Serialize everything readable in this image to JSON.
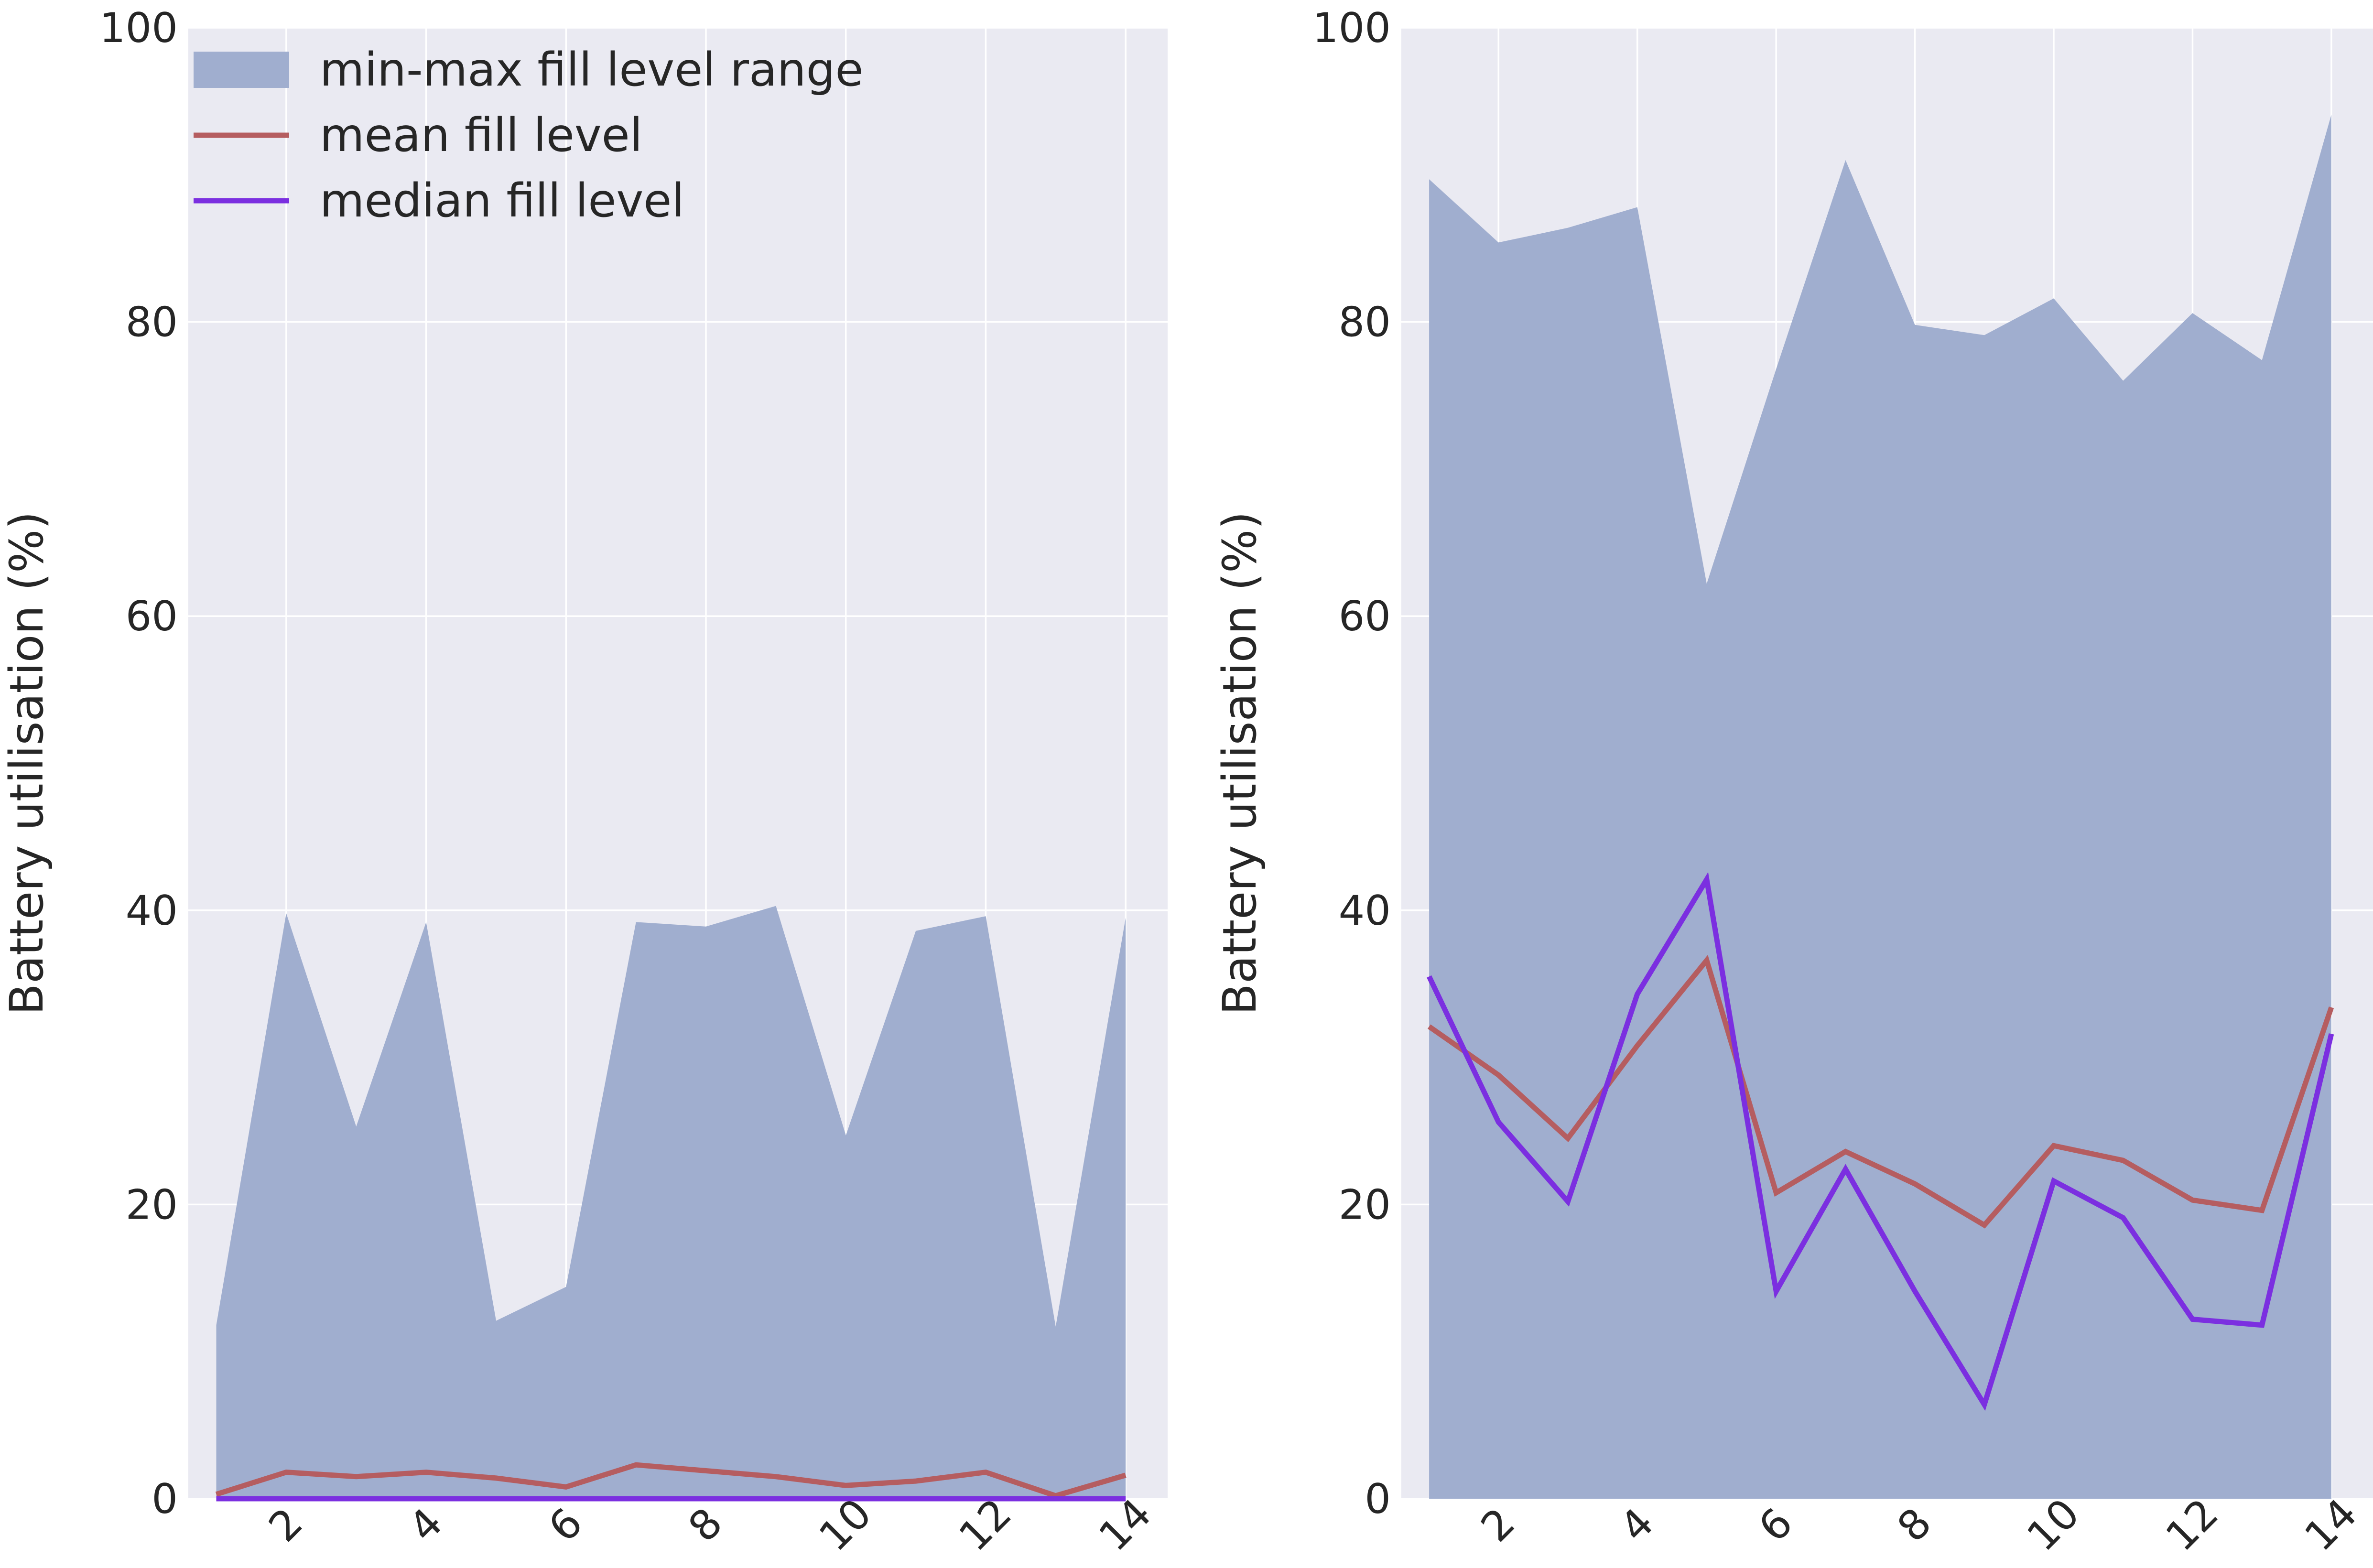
{
  "chart_data": [
    {
      "type": "area",
      "xlabel": "",
      "ylabel": "Battery utilisation (%)",
      "xlim": [
        0.6,
        14.6
      ],
      "ylim": [
        0,
        100
      ],
      "xticks": [
        2,
        4,
        6,
        8,
        10,
        12,
        14
      ],
      "yticks": [
        0,
        20,
        40,
        60,
        80,
        100
      ],
      "grid": true,
      "legend_placement": "top-left",
      "x": [
        1,
        2,
        3,
        4,
        5,
        6,
        7,
        8,
        9,
        10,
        11,
        12,
        13,
        14
      ],
      "series": [
        {
          "name": "min-max fill level range",
          "kind": "band",
          "color": "#a0aecf",
          "lower": [
            0,
            0,
            0,
            0,
            0,
            0,
            0,
            0,
            0,
            0,
            0,
            0,
            0,
            0
          ],
          "upper": [
            11.8,
            39.8,
            25.3,
            39.2,
            12.1,
            14.4,
            39.2,
            38.9,
            40.3,
            24.7,
            38.6,
            39.6,
            11.7,
            39.5
          ]
        },
        {
          "name": "mean fill level",
          "kind": "line",
          "color": "#b55d60",
          "values": [
            0.3,
            1.8,
            1.5,
            1.8,
            1.4,
            0.8,
            2.3,
            1.9,
            1.5,
            0.9,
            1.2,
            1.8,
            0.2,
            1.6
          ]
        },
        {
          "name": "median fill level",
          "kind": "line",
          "color": "#7b2fe0",
          "values": [
            0,
            0,
            0,
            0,
            0,
            0,
            0,
            0,
            0,
            0,
            0,
            0,
            0,
            0
          ]
        }
      ]
    },
    {
      "type": "area",
      "xlabel": "",
      "ylabel": "Battery utilisation (%)",
      "xlim": [
        0.6,
        14.6
      ],
      "ylim": [
        0,
        100
      ],
      "xticks": [
        2,
        4,
        6,
        8,
        10,
        12,
        14
      ],
      "yticks": [
        0,
        20,
        40,
        60,
        80,
        100
      ],
      "grid": true,
      "x": [
        1,
        2,
        3,
        4,
        5,
        6,
        7,
        8,
        9,
        10,
        11,
        12,
        13,
        14
      ],
      "series": [
        {
          "name": "min-max fill level range",
          "kind": "band",
          "color": "#a0aecf",
          "lower": [
            0,
            0,
            0,
            0,
            0,
            0,
            0,
            0,
            0,
            0,
            0,
            0,
            0,
            0
          ],
          "upper": [
            89.7,
            85.4,
            86.4,
            87.8,
            62.2,
            76.8,
            91.0,
            79.8,
            79.1,
            81.6,
            76.0,
            80.6,
            77.4,
            94.1
          ]
        },
        {
          "name": "mean fill level",
          "kind": "line",
          "color": "#b55d60",
          "values": [
            32.1,
            28.8,
            24.5,
            30.8,
            36.6,
            20.8,
            23.6,
            21.4,
            18.6,
            24.0,
            23.0,
            20.3,
            19.6,
            33.4
          ]
        },
        {
          "name": "median fill level",
          "kind": "line",
          "color": "#7b2fe0",
          "values": [
            35.5,
            25.6,
            20.2,
            34.3,
            42.1,
            14.1,
            22.4,
            14.1,
            6.4,
            21.6,
            19.1,
            12.2,
            11.8,
            31.6
          ]
        }
      ]
    }
  ]
}
